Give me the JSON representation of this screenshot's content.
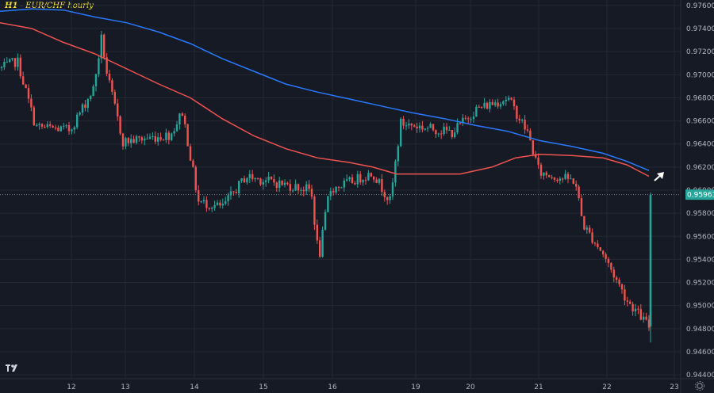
{
  "header": {
    "timeframe": "H1",
    "separator": " - ",
    "title": "EUR/CHF hourly"
  },
  "colors": {
    "background": "#161a25",
    "grid": "#242833",
    "up": "#26a69a",
    "down": "#ef5350",
    "ma_fast": "#ef5350",
    "ma_slow": "#2979ff",
    "price_label_bg": "#26a69a",
    "arrow": "#ffffff"
  },
  "logo": {
    "text": "TV",
    "icon": "tradingview-logo-icon"
  },
  "settings": {
    "icon": "gear-icon"
  },
  "chart_data": {
    "type": "candlestick",
    "title": "EUR/CHF hourly",
    "timeframe": "H1",
    "ylim": [
      0.9438,
      0.9762
    ],
    "y_ticks": [
      "0.97600",
      "0.97400",
      "0.97200",
      "0.97000",
      "0.96800",
      "0.96600",
      "0.96400",
      "0.96200",
      "0.96000",
      "0.95800",
      "0.95600",
      "0.95400",
      "0.95200",
      "0.95000",
      "0.94800",
      "0.94600",
      "0.94400"
    ],
    "x_ticks": [
      {
        "label": "12",
        "t": 90
      },
      {
        "label": "13",
        "t": 158
      },
      {
        "label": "14",
        "t": 245
      },
      {
        "label": "15",
        "t": 332
      },
      {
        "label": "16",
        "t": 419
      },
      {
        "label": "19",
        "t": 524
      },
      {
        "label": "20",
        "t": 593
      },
      {
        "label": "21",
        "t": 679
      },
      {
        "label": "22",
        "t": 765
      },
      {
        "label": "23",
        "t": 850
      }
    ],
    "last_price": "0.95961",
    "last_price_value": 0.95961,
    "price_segments": [
      {
        "t0": 0,
        "t1": 22,
        "from": 0.9705,
        "to": 0.9712
      },
      {
        "t0": 22,
        "t1": 45,
        "from": 0.9712,
        "to": 0.9655
      },
      {
        "t0": 45,
        "t1": 88,
        "from": 0.9655,
        "to": 0.9652
      },
      {
        "t0": 88,
        "t1": 118,
        "from": 0.9652,
        "to": 0.9688
      },
      {
        "t0": 118,
        "t1": 128,
        "from": 0.9688,
        "to": 0.9732
      },
      {
        "t0": 128,
        "t1": 135,
        "from": 0.9732,
        "to": 0.97
      },
      {
        "t0": 135,
        "t1": 155,
        "from": 0.97,
        "to": 0.9642
      },
      {
        "t0": 155,
        "t1": 215,
        "from": 0.9642,
        "to": 0.9648
      },
      {
        "t0": 215,
        "t1": 230,
        "from": 0.9648,
        "to": 0.9668
      },
      {
        "t0": 230,
        "t1": 250,
        "from": 0.9668,
        "to": 0.959
      },
      {
        "t0": 250,
        "t1": 280,
        "from": 0.959,
        "to": 0.9585
      },
      {
        "t0": 280,
        "t1": 310,
        "from": 0.9585,
        "to": 0.9612
      },
      {
        "t0": 310,
        "t1": 392,
        "from": 0.9612,
        "to": 0.96
      },
      {
        "t0": 392,
        "t1": 402,
        "from": 0.96,
        "to": 0.954
      },
      {
        "t0": 402,
        "t1": 415,
        "from": 0.954,
        "to": 0.96
      },
      {
        "t0": 415,
        "t1": 470,
        "from": 0.96,
        "to": 0.9615
      },
      {
        "t0": 470,
        "t1": 492,
        "from": 0.9615,
        "to": 0.959
      },
      {
        "t0": 492,
        "t1": 505,
        "from": 0.959,
        "to": 0.9658
      },
      {
        "t0": 505,
        "t1": 570,
        "from": 0.9658,
        "to": 0.965
      },
      {
        "t0": 570,
        "t1": 600,
        "from": 0.965,
        "to": 0.967
      },
      {
        "t0": 600,
        "t1": 640,
        "from": 0.967,
        "to": 0.968
      },
      {
        "t0": 640,
        "t1": 665,
        "from": 0.968,
        "to": 0.965
      },
      {
        "t0": 665,
        "t1": 680,
        "from": 0.965,
        "to": 0.9615
      },
      {
        "t0": 680,
        "t1": 725,
        "from": 0.9615,
        "to": 0.9608
      },
      {
        "t0": 725,
        "t1": 735,
        "from": 0.9608,
        "to": 0.957
      },
      {
        "t0": 735,
        "t1": 760,
        "from": 0.957,
        "to": 0.9545
      },
      {
        "t0": 760,
        "t1": 790,
        "from": 0.9545,
        "to": 0.9505
      },
      {
        "t0": 790,
        "t1": 818,
        "from": 0.9505,
        "to": 0.9482
      }
    ],
    "final_candle": {
      "t": 820,
      "open": 0.9482,
      "high": 0.9598,
      "low": 0.9468,
      "close": 0.95961
    },
    "ma_fast": [
      [
        0,
        0.9745
      ],
      [
        40,
        0.974
      ],
      [
        80,
        0.9728
      ],
      [
        120,
        0.9718
      ],
      [
        160,
        0.9705
      ],
      [
        200,
        0.9692
      ],
      [
        240,
        0.968
      ],
      [
        280,
        0.9662
      ],
      [
        320,
        0.9647
      ],
      [
        360,
        0.9636
      ],
      [
        400,
        0.9628
      ],
      [
        440,
        0.9624
      ],
      [
        470,
        0.962
      ],
      [
        500,
        0.9614
      ],
      [
        540,
        0.9614
      ],
      [
        580,
        0.9614
      ],
      [
        620,
        0.962
      ],
      [
        650,
        0.9628
      ],
      [
        680,
        0.9631
      ],
      [
        720,
        0.963
      ],
      [
        760,
        0.9628
      ],
      [
        790,
        0.9622
      ],
      [
        818,
        0.9612
      ]
    ],
    "ma_slow": [
      [
        0,
        0.9755
      ],
      [
        40,
        0.9757
      ],
      [
        80,
        0.9756
      ],
      [
        120,
        0.975
      ],
      [
        160,
        0.9745
      ],
      [
        200,
        0.9737
      ],
      [
        240,
        0.9727
      ],
      [
        280,
        0.9714
      ],
      [
        320,
        0.9703
      ],
      [
        360,
        0.9692
      ],
      [
        400,
        0.9685
      ],
      [
        440,
        0.9679
      ],
      [
        480,
        0.9673
      ],
      [
        520,
        0.9667
      ],
      [
        560,
        0.9662
      ],
      [
        600,
        0.9656
      ],
      [
        640,
        0.9651
      ],
      [
        680,
        0.9643
      ],
      [
        720,
        0.9638
      ],
      [
        760,
        0.9632
      ],
      [
        790,
        0.9625
      ],
      [
        818,
        0.9617
      ]
    ]
  }
}
